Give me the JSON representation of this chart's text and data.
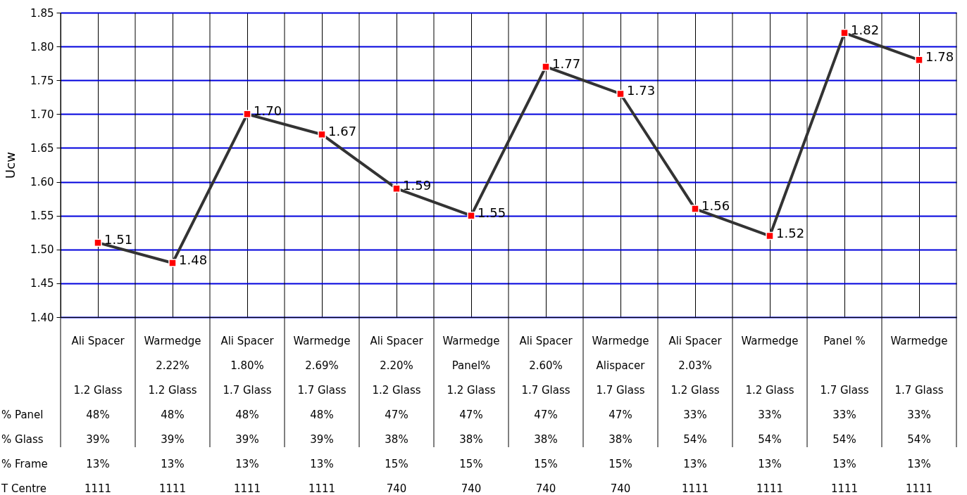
{
  "chart_data": {
    "type": "line",
    "ylabel": "Ucw",
    "categories": [
      "Ali Spacer\n\n1.2 Glass\n48%\n39%\n13%\n1111",
      "Warmedge\n2.22%\n1.2 Glass\n48%\n39%\n13%\n1111",
      "Ali Spacer\n1.80%\n1.7 Glass\n48%\n39%\n13%\n1111",
      "Warmedge\n2.69%\n1.7 Glass\n48%\n39%\n13%\n1111",
      "Ali Spacer\n2.20%\n1.2 Glass\n47%\n38%\n15%\n740",
      "Warmedge\nPanel%\n1.2 Glass\n47%\n38%\n15%\n740",
      "Ali Spacer\n2.60%\n1.7 Glass\n47%\n38%\n15%\n740",
      "Warmedge\nAlispacer\n1.7 Glass\n47%\n38%\n15%\n740",
      "Ali Spacer\n2.03%\n1.2 Glass\n33%\n54%\n13%\n1111",
      "Warmedge\n\n1.2 Glass\n33%\n54%\n13%\n1111",
      "Panel %\n\n1.7 Glass\n33%\n54%\n13%\n1111",
      "Warmedge\n\n1.7 Glass\n33%\n54%\n13%\n1111"
    ],
    "series": [
      {
        "color": "#333333",
        "values": [
          1.51,
          1.48,
          1.7,
          1.67,
          1.59,
          1.55,
          1.77,
          1.73,
          1.56,
          1.52,
          1.82,
          1.78
        ],
        "value_labels": [
          "1.51",
          "1.48",
          "1.70",
          "1.67",
          "1.59",
          "1.55",
          "1.77",
          "1.73",
          "1.56",
          "1.52",
          "1.82",
          "1.78"
        ]
      }
    ],
    "ylim": [
      1.4,
      1.85
    ],
    "yticks": [
      {
        "value": 1.4,
        "label": "1.40"
      },
      {
        "value": 1.45,
        "label": "1.45"
      },
      {
        "value": 1.5,
        "label": "1.50"
      },
      {
        "value": 1.55,
        "label": "1.55"
      },
      {
        "value": 1.6,
        "label": "1.60"
      },
      {
        "value": 1.65,
        "label": "1.65"
      },
      {
        "value": 1.7,
        "label": "1.70"
      },
      {
        "value": 1.75,
        "label": "1.75"
      },
      {
        "value": 1.8,
        "label": "1.80"
      },
      {
        "value": 1.85,
        "label": "1.85"
      }
    ],
    "annotations": [
      "% Panel",
      "% Glass",
      "% Frame",
      "T Centre"
    ],
    "grid": true,
    "marker": "square",
    "line_style": "solid"
  }
}
